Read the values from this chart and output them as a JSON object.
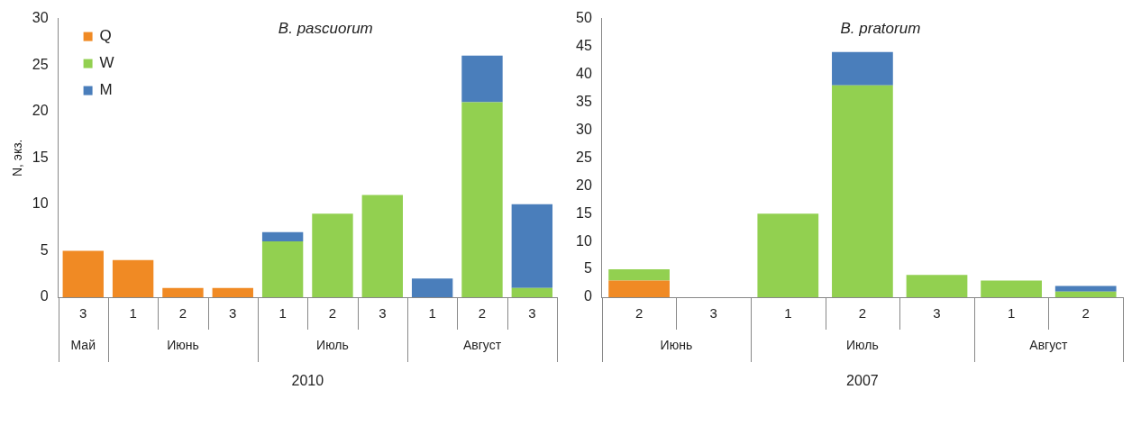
{
  "chart_data": [
    {
      "type": "bar",
      "title": "B. pascuorum",
      "ylabel": "N, экз.",
      "xlabel": "2010",
      "stacked": true,
      "grid": false,
      "legend": "top left",
      "categories": [
        "3",
        "1",
        "2",
        "3",
        "1",
        "2",
        "3",
        "1",
        "2",
        "3"
      ],
      "annotations": [
        "Май",
        "Июнь",
        "Июль",
        "Август"
      ],
      "ylim": [
        0,
        30
      ],
      "yticks": [
        0,
        5,
        10,
        15,
        20,
        25,
        30
      ],
      "series": [
        {
          "name": "Q",
          "color": "#f08a24",
          "values": [
            5,
            4,
            1,
            1,
            0,
            0,
            0,
            0,
            0,
            0
          ]
        },
        {
          "name": "W",
          "color": "#92d050",
          "values": [
            0,
            0,
            0,
            0,
            6,
            9,
            11,
            0,
            21,
            1
          ]
        },
        {
          "name": "M",
          "color": "#4a7ebb",
          "values": [
            0,
            0,
            0,
            0,
            1,
            0,
            0,
            2,
            5,
            9
          ]
        }
      ]
    },
    {
      "type": "bar",
      "title": "B. pratorum",
      "xlabel": "2007",
      "stacked": true,
      "grid": false,
      "categories": [
        "2",
        "3",
        "1",
        "2",
        "3",
        "1",
        "2"
      ],
      "annotations": [
        "Июнь",
        "Июль",
        "Август"
      ],
      "ylim": [
        0,
        50
      ],
      "yticks": [
        0,
        5,
        10,
        15,
        20,
        25,
        30,
        35,
        40,
        45,
        50
      ],
      "series": [
        {
          "color": "#f08a24",
          "values": [
            3,
            0,
            0,
            0,
            0,
            0,
            0
          ]
        },
        {
          "color": "#92d050",
          "values": [
            2,
            0,
            15,
            38,
            4,
            3,
            1
          ]
        },
        {
          "color": "#4a7ebb",
          "values": [
            0,
            0,
            0,
            6,
            0,
            0,
            1
          ]
        }
      ]
    }
  ]
}
